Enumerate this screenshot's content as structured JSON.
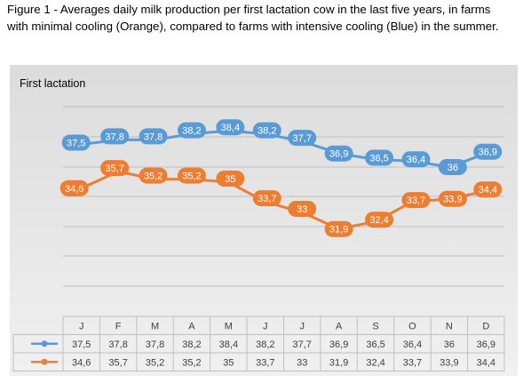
{
  "caption": "Figure 1 - Averages daily milk production per first lactation cow in the last five years, in farms with minimal cooling (Orange), compared to farms with intensive cooling (Blue) in the summer.",
  "chart_data": {
    "type": "line",
    "title": "First lactation",
    "categories": [
      "J",
      "F",
      "M",
      "A",
      "M",
      "J",
      "J",
      "A",
      "S",
      "O",
      "N",
      "D"
    ],
    "series": [
      {
        "color": "#5b9bd5",
        "values": [
          37.5,
          37.8,
          37.8,
          38.2,
          38.4,
          38.2,
          37.7,
          36.9,
          36.5,
          36.4,
          36,
          36.9
        ],
        "labels": [
          "37,5",
          "37,8",
          "37,8",
          "38,2",
          "38,4",
          "38,2",
          "37,7",
          "36,9",
          "36,5",
          "36,4",
          "36",
          "36,9"
        ]
      },
      {
        "color": "#ed7d31",
        "values": [
          34.6,
          35.7,
          35.2,
          35.2,
          35,
          33.7,
          33,
          31.9,
          32.4,
          33.7,
          33.9,
          34.4
        ],
        "labels": [
          "34,6",
          "35,7",
          "35,2",
          "35,2",
          "35",
          "33,7",
          "33",
          "31,9",
          "32,4",
          "33,7",
          "33,9",
          "34,4"
        ]
      }
    ],
    "data_table": true,
    "grid": true
  }
}
